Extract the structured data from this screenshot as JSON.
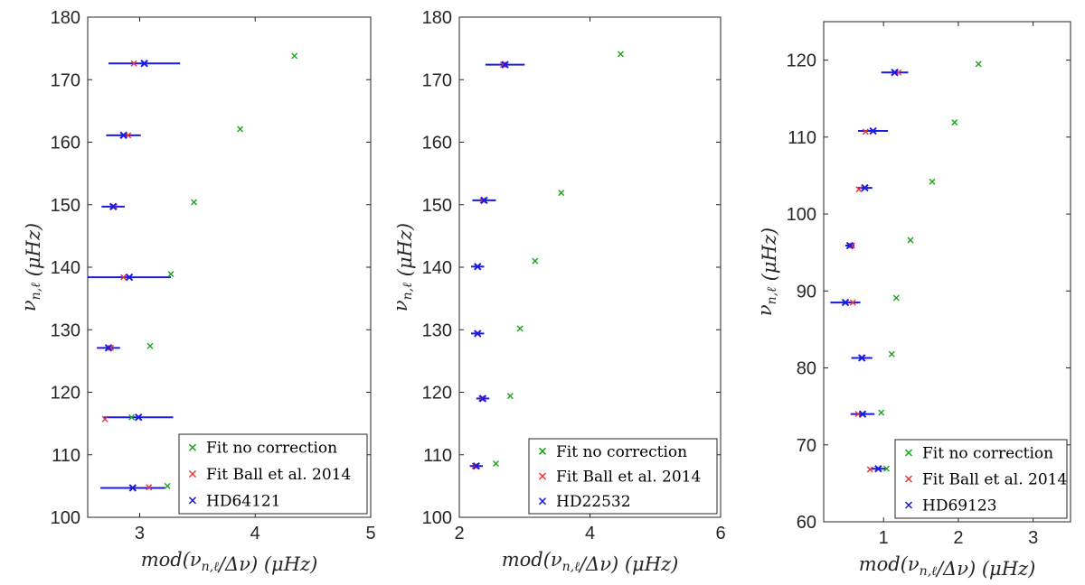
{
  "chart_data": [
    {
      "type": "scatter",
      "xlabel": "mod(ν_{n,ℓ}/Δν) (μHz)",
      "ylabel": "ν_{n,ℓ} (μHz)",
      "xlim": [
        2.55,
        5.0
      ],
      "ylim": [
        100,
        180
      ],
      "xticks": [
        3,
        4,
        5
      ],
      "yticks": [
        100,
        110,
        120,
        130,
        140,
        150,
        160,
        170,
        180
      ],
      "legend_position": "bottom-right",
      "series": [
        {
          "name": "Fit no correction",
          "color": "#1aa31a",
          "points": [
            [
              3.24,
              105.0
            ],
            [
              2.93,
              116.0
            ],
            [
              3.09,
              127.4
            ],
            [
              3.27,
              138.9
            ],
            [
              3.47,
              150.4
            ],
            [
              3.87,
              162.1
            ],
            [
              4.34,
              173.8
            ]
          ]
        },
        {
          "name": "Fit Ball et al. 2014",
          "color": "#e8333a",
          "points": [
            [
              3.08,
              104.8
            ],
            [
              2.7,
              115.7
            ],
            [
              2.75,
              127.1
            ],
            [
              2.86,
              138.4
            ],
            [
              2.78,
              149.7
            ],
            [
              2.9,
              161.1
            ],
            [
              2.95,
              172.6
            ]
          ]
        },
        {
          "name": "HD64121",
          "color": "#1a1ae0",
          "points": [
            [
              2.94,
              104.7
            ],
            [
              2.99,
              116.0
            ],
            [
              2.73,
              127.1
            ],
            [
              2.91,
              138.4
            ],
            [
              2.77,
              149.7
            ],
            [
              2.86,
              161.1
            ],
            [
              3.04,
              172.6
            ]
          ],
          "xerr": [
            0.28,
            0.3,
            0.1,
            0.36,
            0.1,
            0.15,
            0.31
          ]
        }
      ]
    },
    {
      "type": "scatter",
      "xlabel": "mod(ν_{n,ℓ}/Δν) (μHz)",
      "ylabel": "ν_{n,ℓ} (μHz)",
      "xlim": [
        2.0,
        6.0
      ],
      "ylim": [
        100,
        180
      ],
      "xticks": [
        2,
        4,
        6
      ],
      "yticks": [
        100,
        110,
        120,
        130,
        140,
        150,
        160,
        170,
        180
      ],
      "legend_position": "bottom-right",
      "series": [
        {
          "name": "Fit no correction",
          "color": "#1aa31a",
          "points": [
            [
              2.56,
              108.6
            ],
            [
              2.78,
              119.4
            ],
            [
              2.93,
              130.2
            ],
            [
              3.16,
              141.0
            ],
            [
              3.56,
              151.9
            ],
            [
              4.47,
              174.1
            ]
          ]
        },
        {
          "name": "Fit Ball et al. 2014",
          "color": "#e8333a",
          "points": [
            [
              2.24,
              108.2
            ],
            [
              2.34,
              119.0
            ],
            [
              2.28,
              129.4
            ],
            [
              2.28,
              140.1
            ],
            [
              2.36,
              150.7
            ],
            [
              2.67,
              172.4
            ]
          ]
        },
        {
          "name": "HD22532",
          "color": "#1a1ae0",
          "points": [
            [
              2.26,
              108.2
            ],
            [
              2.36,
              119.0
            ],
            [
              2.28,
              129.4
            ],
            [
              2.28,
              140.1
            ],
            [
              2.38,
              150.7
            ],
            [
              2.7,
              172.4
            ]
          ],
          "xerr": [
            0.1,
            0.1,
            0.1,
            0.1,
            0.18,
            0.3
          ]
        }
      ]
    },
    {
      "type": "scatter",
      "xlabel": "mod(ν_{n,ℓ}/Δν) (μHz)",
      "ylabel": "ν_{n,ℓ} (μHz)",
      "xlim": [
        0.2,
        3.5
      ],
      "ylim": [
        60,
        125
      ],
      "xticks": [
        1,
        2,
        3
      ],
      "yticks": [
        60,
        70,
        80,
        90,
        100,
        110,
        120
      ],
      "legend_position": "bottom-right",
      "series": [
        {
          "name": "Fit no correction",
          "color": "#1aa31a",
          "points": [
            [
              1.04,
              66.9
            ],
            [
              0.97,
              74.2
            ],
            [
              1.11,
              81.8
            ],
            [
              1.17,
              89.1
            ],
            [
              1.36,
              96.6
            ],
            [
              1.65,
              104.2
            ],
            [
              1.95,
              111.9
            ],
            [
              2.27,
              119.5
            ]
          ]
        },
        {
          "name": "Fit Ball et al. 2014",
          "color": "#e8333a",
          "points": [
            [
              0.82,
              66.8
            ],
            [
              0.66,
              74.0
            ],
            [
              0.71,
              81.3
            ],
            [
              0.59,
              88.5
            ],
            [
              0.58,
              95.9
            ],
            [
              0.67,
              103.2
            ],
            [
              0.76,
              110.7
            ],
            [
              1.2,
              118.4
            ]
          ]
        },
        {
          "name": "HD69123",
          "color": "#1a1ae0",
          "points": [
            [
              0.93,
              66.9
            ],
            [
              0.72,
              74.0
            ],
            [
              0.71,
              81.3
            ],
            [
              0.49,
              88.5
            ],
            [
              0.55,
              95.9
            ],
            [
              0.75,
              103.4
            ],
            [
              0.86,
              110.8
            ],
            [
              1.15,
              118.4
            ]
          ],
          "xerr": [
            0.1,
            0.16,
            0.14,
            0.2,
            0.06,
            0.1,
            0.2,
            0.18
          ]
        }
      ]
    }
  ]
}
